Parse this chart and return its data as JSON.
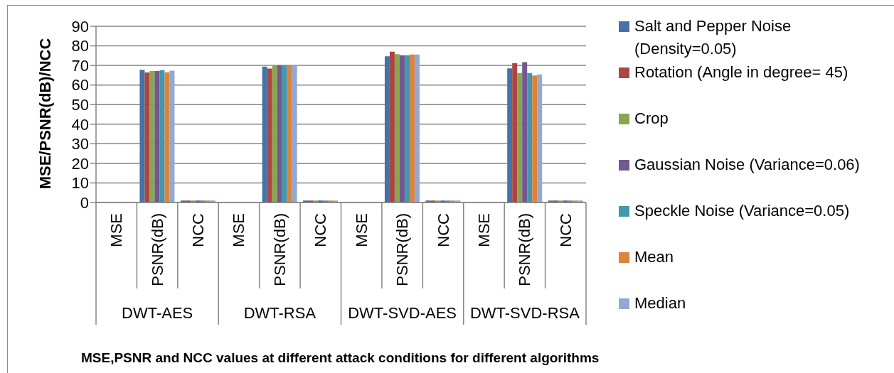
{
  "chart_data": {
    "type": "bar",
    "title": "MSE,PSNR and NCC values at different attack conditions for different algorithms",
    "ylabel": "MSE/PSNR(dB)/NCC",
    "categories": [
      "MSE",
      "PSNR(dB)",
      "NCC",
      "MSE",
      "PSNR(dB)",
      "NCC",
      "MSE",
      "PSNR(dB)",
      "NCC",
      "MSE",
      "PSNR(dB)",
      "NCC"
    ],
    "annotations": [
      "DWT-AES",
      "DWT-RSA",
      "DWT-SVD-AES",
      "DWT-SVD-RSA"
    ],
    "series": [
      {
        "name": "Salt and Pepper Noise (Density=0.05)",
        "color": "#4572a7",
        "values": [
          0,
          67.8,
          1,
          0,
          69.4,
          1,
          0,
          74.7,
          1,
          0,
          68.5,
          1
        ]
      },
      {
        "name": "Rotation (Angle in degree= 45)",
        "color": "#aa4643",
        "values": [
          0,
          66.4,
          1,
          0,
          68.4,
          1,
          0,
          77.0,
          1,
          0,
          71.1,
          1
        ]
      },
      {
        "name": "Crop",
        "color": "#89a54e",
        "values": [
          0,
          67.1,
          1,
          0,
          70.0,
          1,
          0,
          75.8,
          1,
          0,
          66.1,
          1
        ]
      },
      {
        "name": "Gaussian Noise (Variance=0.06)",
        "color": "#71588f",
        "values": [
          0,
          67.1,
          1,
          0,
          70.0,
          1,
          0,
          75.2,
          1,
          0,
          71.7,
          1
        ]
      },
      {
        "name": "Speckle Noise (Variance=0.05)",
        "color": "#4198af",
        "values": [
          0,
          67.6,
          1,
          0,
          70.0,
          1,
          0,
          75.2,
          1,
          0,
          66.1,
          1
        ]
      },
      {
        "name": "Mean",
        "color": "#db843d",
        "values": [
          0,
          66.5,
          1,
          0,
          70.0,
          1,
          0,
          75.6,
          1,
          0,
          64.9,
          1
        ]
      },
      {
        "name": "Median",
        "color": "#93a9cf",
        "values": [
          0,
          67.3,
          1,
          0,
          70.0,
          1,
          0,
          75.6,
          1,
          0,
          65.4,
          1
        ]
      }
    ],
    "ylim": [
      0,
      90
    ],
    "yticks": [
      0,
      10,
      20,
      30,
      40,
      50,
      60,
      70,
      80,
      90
    ],
    "grid": "y",
    "legend": "right"
  }
}
